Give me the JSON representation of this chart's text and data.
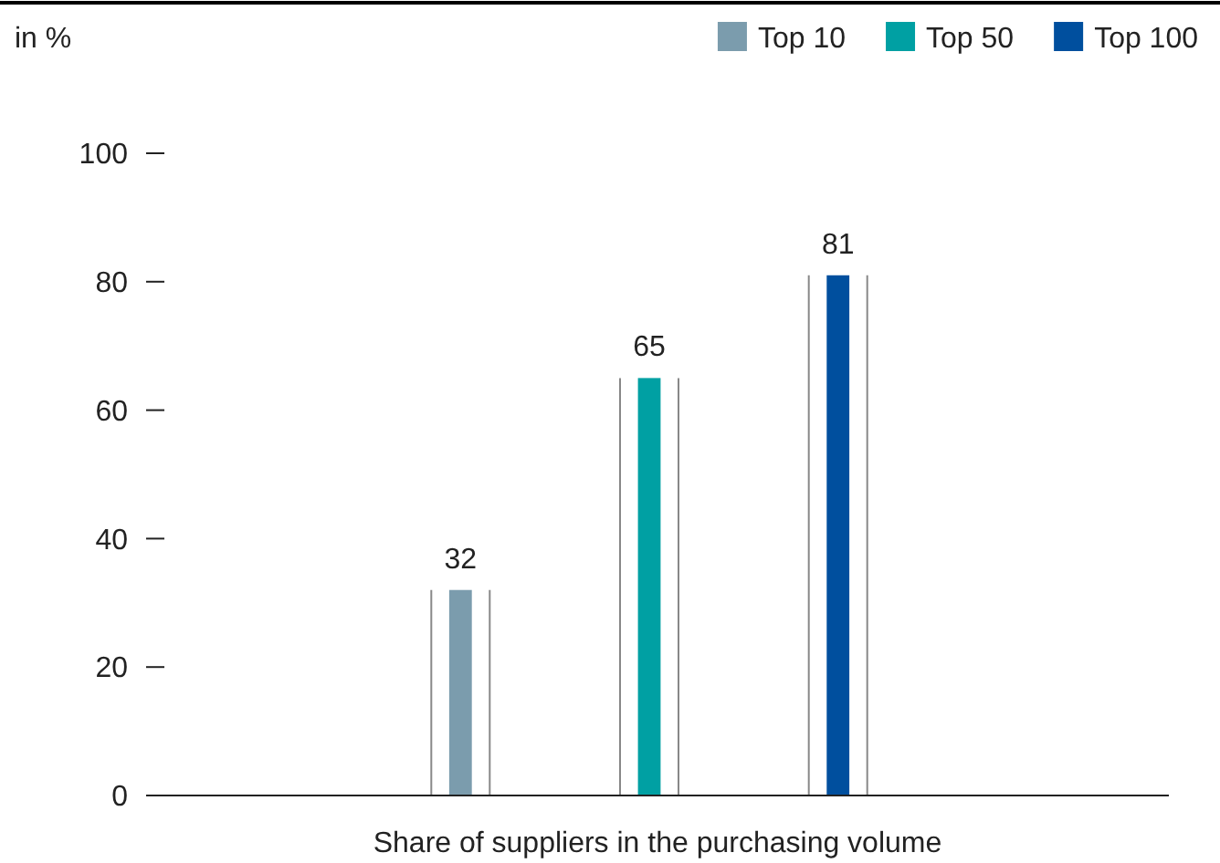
{
  "chart_data": {
    "type": "bar",
    "ylabel": "in %",
    "xlabel": "Share of suppliers in the purchasing volume",
    "categories": [
      null,
      null,
      null
    ],
    "series": [
      {
        "name": "Top 10",
        "color": "#7b9cad",
        "values": [
          32,
          null,
          null
        ]
      },
      {
        "name": "Top 50",
        "color": "#00a0a3",
        "values": [
          null,
          65,
          null
        ]
      },
      {
        "name": "Top 100",
        "color": "#004f9e",
        "values": [
          null,
          null,
          81
        ]
      }
    ],
    "ylim": [
      0,
      100
    ],
    "yticks": [
      0,
      20,
      40,
      60,
      80,
      100
    ],
    "data_labels": true,
    "legend": "top right",
    "grid": false
  }
}
